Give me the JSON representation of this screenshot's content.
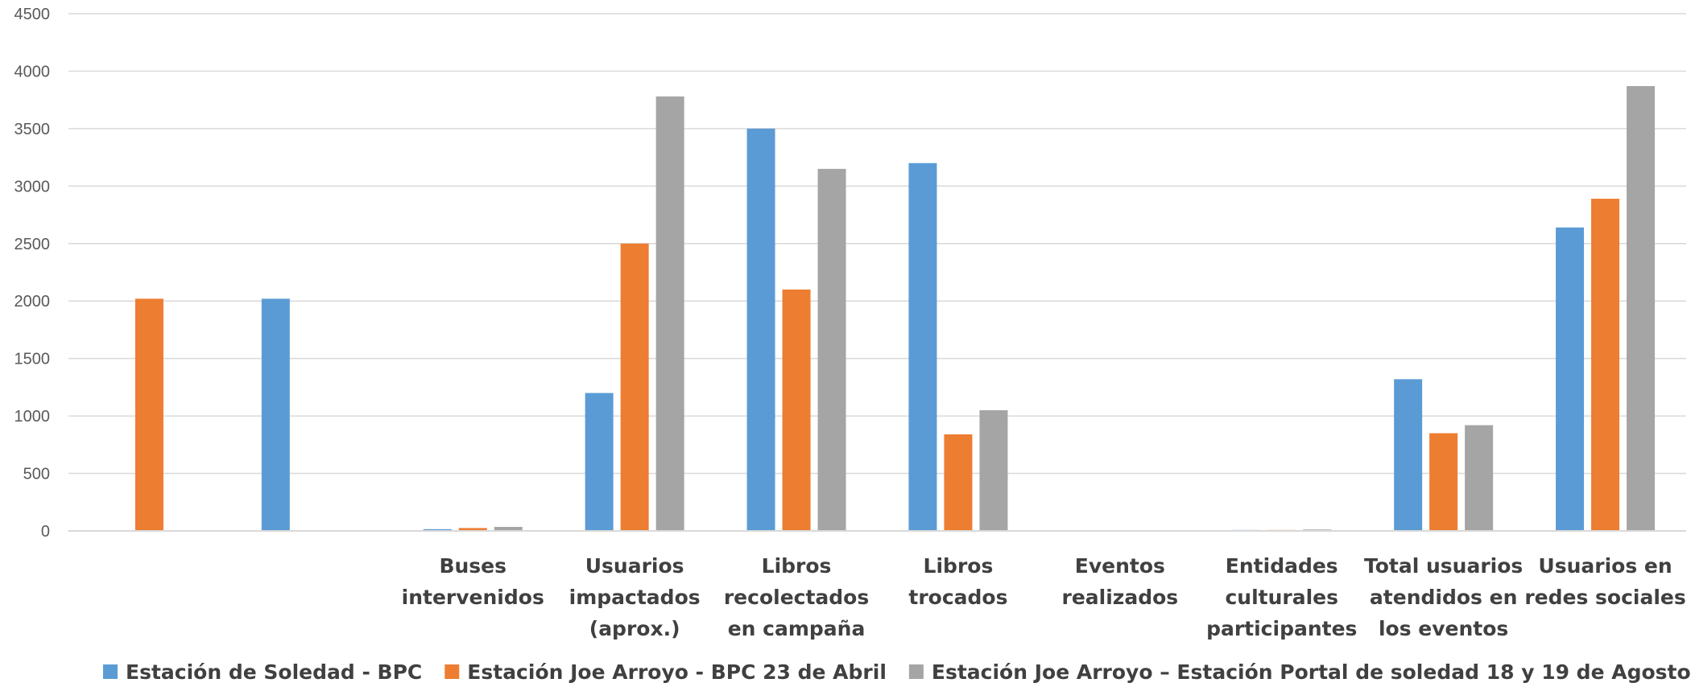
{
  "chart_data": {
    "type": "bar",
    "categories": [
      "",
      "",
      "Buses intervenidos",
      "Usuarios impactados (aprox.)",
      "Libros recolectados en campaña",
      "Libros trocados",
      "Eventos realizados",
      "Entidades culturales participantes",
      "Total usuarios atendidos en los eventos",
      "Usuarios en redes sociales"
    ],
    "category_lines": [
      [],
      [],
      [
        "Buses",
        "intervenidos"
      ],
      [
        "Usuarios",
        "impactados",
        "(aprox.)"
      ],
      [
        "Libros",
        "recolectados",
        "en campaña"
      ],
      [
        "Libros",
        "trocados"
      ],
      [
        "Eventos",
        "realizados"
      ],
      [
        "Entidades",
        "culturales",
        "participantes"
      ],
      [
        "Total usuarios",
        "atendidos en",
        "los eventos"
      ],
      [
        "Usuarios en",
        "redes sociales"
      ]
    ],
    "series": [
      {
        "name": "Estación de Soledad - BPC",
        "color": "#5b9bd5",
        "values": [
          null,
          2020,
          15,
          1200,
          3500,
          3200,
          5,
          8,
          1320,
          2640
        ]
      },
      {
        "name": "Estación Joe Arroyo -  BPC 23 de Abril",
        "color": "#ed7d31",
        "values": [
          2020,
          null,
          25,
          2500,
          2100,
          840,
          5,
          8,
          850,
          2890
        ]
      },
      {
        "name": "Estación Joe Arroyo – Estación Portal de soledad 18 y 19 de Agosto",
        "color": "#a5a5a5",
        "values": [
          null,
          null,
          35,
          3780,
          3150,
          1050,
          6,
          12,
          920,
          3870
        ]
      }
    ],
    "ylim": [
      0,
      4500
    ],
    "yticks": [
      0,
      500,
      1000,
      1500,
      2000,
      2500,
      3000,
      3500,
      4000,
      4500
    ],
    "grid": true,
    "legend_position": "bottom",
    "gridline_color": "#d9d9d9"
  }
}
